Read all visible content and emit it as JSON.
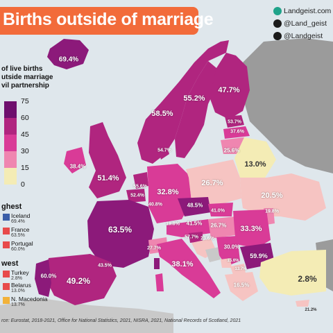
{
  "title": "Births outside of marriage",
  "social": [
    {
      "icon": "landgeist-logo-icon",
      "text": "Landgeist.com"
    },
    {
      "icon": "instagram-icon",
      "text": "@Land_geist"
    },
    {
      "icon": "twitter-icon",
      "text": "@Landgeist"
    }
  ],
  "legend": {
    "title": "of live births\nutside marriage\nvil partnership",
    "scale": [
      "75",
      "60",
      "45",
      "30",
      "15",
      "0"
    ],
    "colors": [
      "#6e0f6d",
      "#b0257f",
      "#d93b97",
      "#ef86b0",
      "#f6c4c2",
      "#f4ecb5"
    ]
  },
  "highest": {
    "heading": "ghest",
    "items": [
      {
        "country": "Iceland",
        "value": "69.4%"
      },
      {
        "country": "France",
        "value": "63.5%"
      },
      {
        "country": "Portugal",
        "value": "60.0%"
      }
    ]
  },
  "lowest": {
    "heading": "west",
    "items": [
      {
        "country": "Turkey",
        "value": "2.8%"
      },
      {
        "country": "Belarus",
        "value": "13.0%"
      },
      {
        "country": "N. Macedonia",
        "value": "13.7%"
      }
    ]
  },
  "source": "rce: Eurostat, 2018-2021, Office for National Statistics, 2021, NISRA, 2021, National Records of Scotland, 2021",
  "map_labels": [
    {
      "id": "iceland",
      "text": "69.4%"
    },
    {
      "id": "norway",
      "text": "58.5%"
    },
    {
      "id": "sweden",
      "text": "55.2%"
    },
    {
      "id": "finland",
      "text": "47.7%"
    },
    {
      "id": "estonia",
      "text": "53.7%"
    },
    {
      "id": "latvia",
      "text": "37.6%"
    },
    {
      "id": "lithuania",
      "text": "25.6%"
    },
    {
      "id": "denmark",
      "text": "54.7%"
    },
    {
      "id": "belarus",
      "text": "13.0%"
    },
    {
      "id": "ireland",
      "text": "38.4%"
    },
    {
      "id": "uk",
      "text": "51.4%"
    },
    {
      "id": "netherlands",
      "text": "55.6%"
    },
    {
      "id": "belgium",
      "text": "52.4%"
    },
    {
      "id": "luxembourg",
      "text": "40.8%"
    },
    {
      "id": "germany",
      "text": "32.8%"
    },
    {
      "id": "poland",
      "text": "26.7%"
    },
    {
      "id": "ukraine",
      "text": "20.5%"
    },
    {
      "id": "czechia",
      "text": "48.5%"
    },
    {
      "id": "slovakia",
      "text": "41.0%"
    },
    {
      "id": "moldova",
      "text": "19.8%"
    },
    {
      "id": "france",
      "text": "63.5%"
    },
    {
      "id": "switzerland",
      "text": "27.7%"
    },
    {
      "id": "liechtenstein",
      "text": "19.8%"
    },
    {
      "id": "austria",
      "text": "41.5%"
    },
    {
      "id": "hungary",
      "text": "26.7%"
    },
    {
      "id": "romania",
      "text": "33.3%"
    },
    {
      "id": "slovenia",
      "text": "57.7%"
    },
    {
      "id": "croatia",
      "text": "23.6%"
    },
    {
      "id": "serbia",
      "text": "30.0%"
    },
    {
      "id": "bulgaria",
      "text": "59.9%"
    },
    {
      "id": "montenegro",
      "text": "15.6%"
    },
    {
      "id": "nmacedonia",
      "text": "13.7%"
    },
    {
      "id": "spain",
      "text": "49.2%"
    },
    {
      "id": "portugal",
      "text": "60.0%"
    },
    {
      "id": "andorra",
      "text": "43.5%"
    },
    {
      "id": "italy",
      "text": "38.1%"
    },
    {
      "id": "greece",
      "text": "16.5%"
    },
    {
      "id": "turkey",
      "text": "2.8%"
    },
    {
      "id": "cyprus",
      "text": "21.2%"
    }
  ]
}
